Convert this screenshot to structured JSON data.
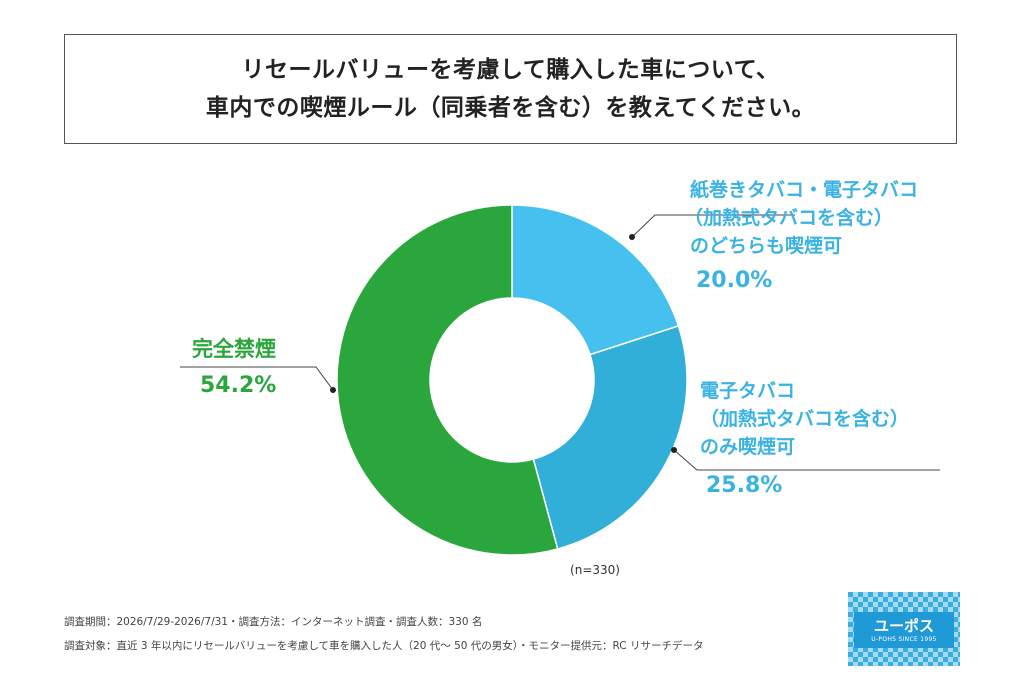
{
  "title": {
    "line1": "リセールバリューを考慮して購入した車について、",
    "line2": "車内での喫煙ルール（同乗者を含む）を教えてください。"
  },
  "chart_data": {
    "type": "pie",
    "donut": true,
    "slices": [
      {
        "label_lines": [
          "紙巻きタバコ・電子タバコ",
          "（加熱式タバコを含む）",
          "のどちらも喫煙可"
        ],
        "value_label": "20.0%",
        "value": 20.0,
        "color": "#46c0ef"
      },
      {
        "label_lines": [
          "電子タバコ",
          "（加熱式タバコを含む）",
          "のみ喫煙可"
        ],
        "value_label": "25.8%",
        "value": 25.8,
        "color": "#32afd9"
      },
      {
        "label_lines": [
          "完全禁煙"
        ],
        "value_label": "54.2%",
        "value": 54.2,
        "color": "#2aa63c"
      }
    ],
    "sample_size": "(n=330)"
  },
  "footer": {
    "line1": "調査期間：2026/7/29-2026/7/31・調査方法：インターネット調査・調査人数：330 名",
    "line2": "調査対象：直近 3 年以内にリセールバリューを考慮して車を購入した人（20 代～ 50 代の男女）・モニター提供元：RC リサーチデータ"
  },
  "logo": {
    "brand": "ユーポス",
    "since": "U-POHS SINCE 1995"
  },
  "colors": {
    "label_blue": "#3ab3e3",
    "label_green": "#2aa63c"
  }
}
